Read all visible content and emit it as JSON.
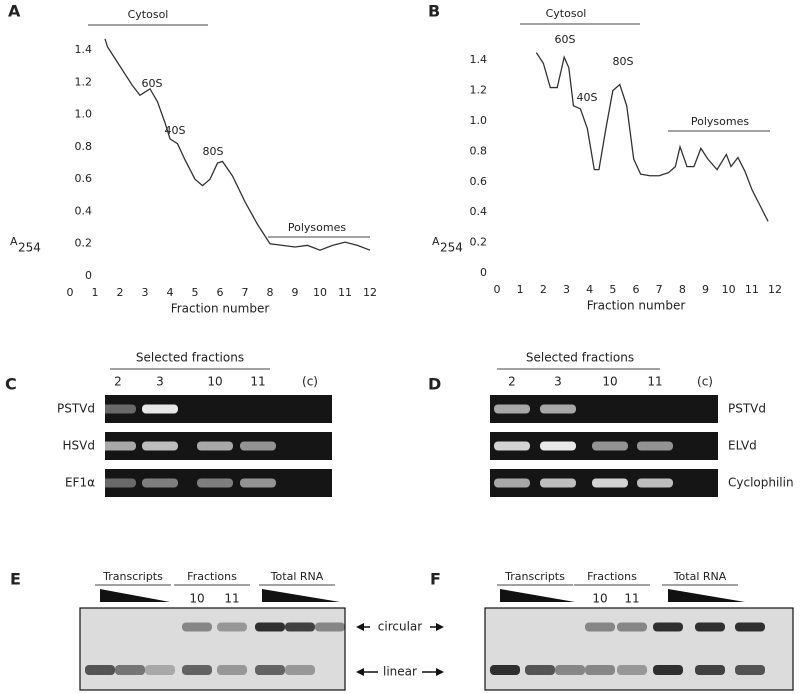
{
  "chart_data": [
    {
      "type": "line",
      "panel": "A",
      "x_label": "Fraction number",
      "y_label": "A",
      "y_label_sub": "254",
      "annotations": [
        "Cytosol",
        "60S",
        "40S",
        "80S",
        "Polysomes"
      ],
      "color": "#333",
      "x": [
        1.4,
        1.5,
        2,
        2.5,
        2.8,
        3,
        3.2,
        3.5,
        3.8,
        4,
        4.3,
        4.6,
        5,
        5.3,
        5.6,
        5.9,
        6.1,
        6.5,
        7,
        7.5,
        8,
        8.5,
        9,
        9.5,
        10,
        10.5,
        11,
        11.5,
        12
      ],
      "values": [
        1.47,
        1.42,
        1.3,
        1.18,
        1.12,
        1.14,
        1.16,
        1.08,
        0.95,
        0.85,
        0.82,
        0.72,
        0.6,
        0.56,
        0.6,
        0.7,
        0.71,
        0.62,
        0.46,
        0.32,
        0.2,
        0.19,
        0.18,
        0.19,
        0.16,
        0.19,
        0.21,
        0.19,
        0.16
      ],
      "xlim": [
        0,
        12
      ],
      "ylim": [
        0,
        1.5
      ],
      "xticks": [
        0,
        1,
        2,
        3,
        4,
        5,
        6,
        7,
        8,
        9,
        10,
        11,
        12
      ],
      "yticks": [
        0,
        0.2,
        0.4,
        0.6,
        0.8,
        {
          "value": 1,
          "label": "1.0"
        },
        1.2,
        1.4
      ]
    },
    {
      "type": "line",
      "panel": "B",
      "x_label": "Fraction number",
      "y_label": "A",
      "y_label_sub": "254",
      "annotations": [
        "Cytosol",
        "60S",
        "40S",
        "80S",
        "Polysomes"
      ],
      "color": "#333",
      "x": [
        1.7,
        2,
        2.3,
        2.6,
        2.9,
        3.1,
        3.3,
        3.6,
        3.9,
        4.2,
        4.4,
        4.7,
        5,
        5.3,
        5.6,
        5.9,
        6.2,
        6.6,
        7,
        7.4,
        7.7,
        7.9,
        8.2,
        8.5,
        8.8,
        9.1,
        9.5,
        9.9,
        10.1,
        10.4,
        10.7,
        11,
        11.4,
        11.7
      ],
      "values": [
        1.45,
        1.38,
        1.22,
        1.22,
        1.42,
        1.35,
        1.1,
        1.08,
        0.95,
        0.68,
        0.68,
        0.95,
        1.2,
        1.24,
        1.1,
        0.75,
        0.65,
        0.64,
        0.64,
        0.66,
        0.7,
        0.83,
        0.7,
        0.7,
        0.82,
        0.75,
        0.68,
        0.78,
        0.7,
        0.76,
        0.67,
        0.55,
        0.43,
        0.34
      ],
      "xlim": [
        0,
        12
      ],
      "ylim": [
        0,
        1.5
      ],
      "xticks": [
        0,
        1,
        2,
        3,
        4,
        5,
        6,
        7,
        8,
        9,
        10,
        11,
        12
      ],
      "yticks": [
        0,
        0.2,
        0.4,
        0.6,
        0.8,
        {
          "value": 1,
          "label": "1.0"
        },
        1.2,
        1.4
      ]
    }
  ],
  "gels": [
    {
      "panel": "C",
      "header": "Selected fractions",
      "lanes": [
        "2",
        "3",
        "10",
        "11",
        "(c)"
      ],
      "rows": [
        "PSTVd",
        "HSVd",
        "EF1α"
      ]
    },
    {
      "panel": "D",
      "header": "Selected fractions",
      "lanes": [
        "2",
        "3",
        "10",
        "11",
        "(c)"
      ],
      "rows": [
        "PSTVd",
        "ELVd",
        "Cyclophilin"
      ]
    }
  ],
  "blots": [
    {
      "panel": "E",
      "groups": [
        "Transcripts",
        "Fractions",
        "Total RNA"
      ],
      "lanes": [
        "10",
        "11"
      ]
    },
    {
      "panel": "F",
      "groups": [
        "Transcripts",
        "Fractions",
        "Total RNA"
      ],
      "lanes": [
        "10",
        "11"
      ]
    }
  ],
  "arrows": [
    "circular",
    "linear"
  ]
}
